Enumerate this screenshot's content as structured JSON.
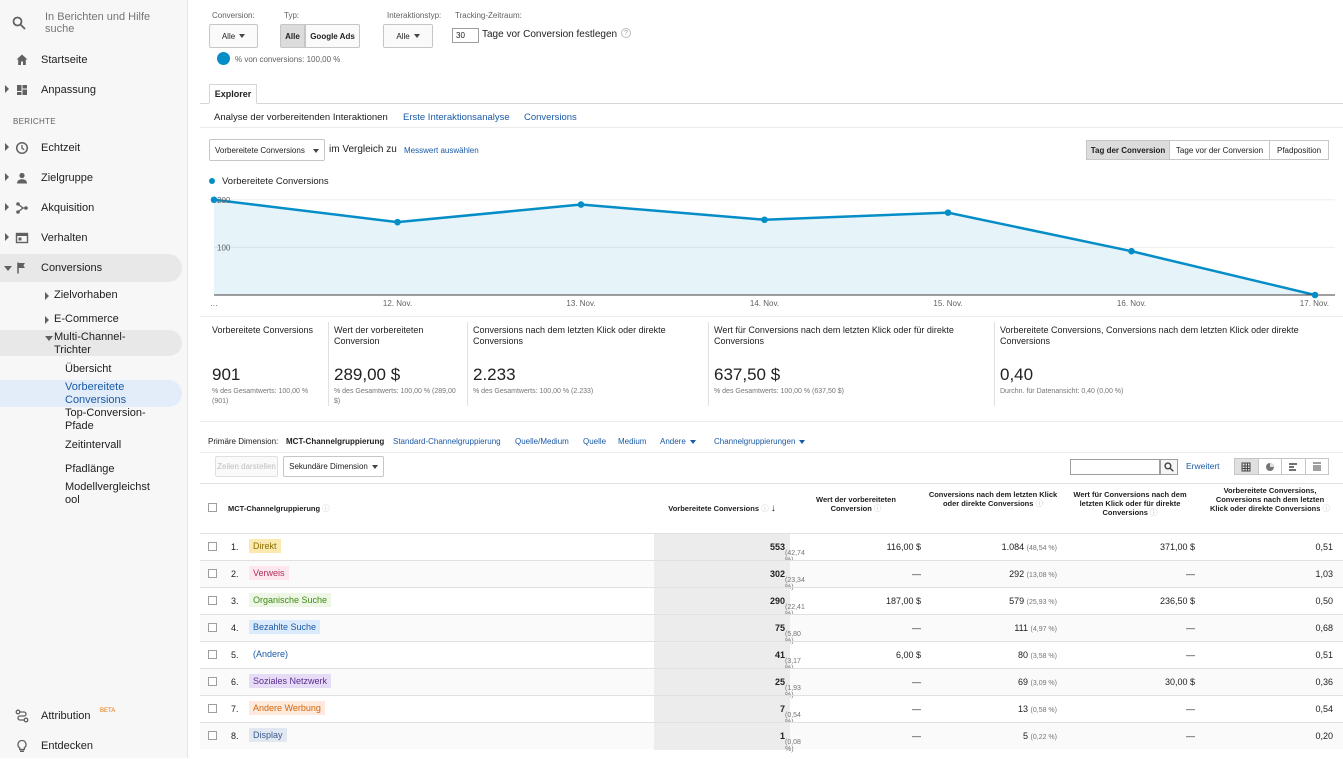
{
  "sidebar": {
    "search_placeholder": "In Berichten und Hilfe suche",
    "top_items": [
      {
        "label": "Startseite",
        "icon": "home-icon"
      },
      {
        "label": "Anpassung",
        "icon": "dashboard-icon"
      }
    ],
    "section": "BERICHTE",
    "report_items": [
      {
        "label": "Echtzeit",
        "icon": "clock-icon"
      },
      {
        "label": "Zielgruppe",
        "icon": "person-icon"
      },
      {
        "label": "Akquisition",
        "icon": "acquisition-icon"
      },
      {
        "label": "Verhalten",
        "icon": "behavior-icon"
      },
      {
        "label": "Conversions",
        "icon": "flag-icon"
      }
    ],
    "conversion_sub": [
      "Zielvorhaben",
      "E-Commerce",
      "Multi-Channel-Trichter"
    ],
    "mcf_sub": [
      "Übersicht",
      "Vorbereitete Conversions",
      "Top-Conversion-Pfade",
      "Zeitintervall",
      "Pfadlänge",
      "Modellvergleichst ool"
    ],
    "bottom": {
      "attribution": "Attribution",
      "beta": "BETA",
      "discover": "Entdecken"
    }
  },
  "filters": {
    "conversion_label": "Conversion:",
    "conversion_value": "Alle",
    "type_label": "Typ:",
    "type_all": "Alle",
    "type_ads": "Google Ads",
    "interaction_label": "Interaktionstyp:",
    "interaction_value": "Alle",
    "tracking_label": "Tracking-Zeitraum:",
    "tracking_days": "30",
    "tracking_suffix": "Tage vor Conversion festlegen",
    "segment_text": "% von conversions: 100,00 %"
  },
  "tabs": {
    "explorer": "Explorer",
    "subtabs": [
      "Analyse der vorbereitenden Interaktionen",
      "Erste Interaktionsanalyse",
      "Conversions"
    ]
  },
  "chart_controls": {
    "metric_select": "Vorbereitete Conversions",
    "compare_text": "im Vergleich zu",
    "compare_link": "Messwert auswählen",
    "view_buttons": [
      "Tag der Conversion",
      "Tage vor der Conversion",
      "Pfadposition"
    ]
  },
  "chart_data": {
    "type": "area",
    "series": [
      {
        "name": "Vorbereitete Conversions",
        "values": [
          200,
          153,
          190,
          158,
          173,
          92,
          0
        ]
      }
    ],
    "x": [
      "…",
      "12. Nov.",
      "13. Nov.",
      "14. Nov.",
      "15. Nov.",
      "16. Nov.",
      "17. Nov."
    ],
    "yticks": [
      "200",
      "100"
    ],
    "ylim": [
      0,
      210
    ],
    "color": "#058dc7"
  },
  "metrics": [
    {
      "title": "Vorbereitete Conversions",
      "value": "901",
      "sub": "% des Gesamtwerts: 100,00 % (901)"
    },
    {
      "title": "Wert der vorbereiteten Conversion",
      "value": "289,00 $",
      "sub": "% des Gesamtwerts: 100,00 % (289,00 $)"
    },
    {
      "title": "Conversions nach dem letzten Klick oder direkte Conversions",
      "value": "2.233",
      "sub": "% des Gesamtwerts: 100,00 % (2.233)"
    },
    {
      "title": "Wert für Conversions nach dem letzten Klick oder für direkte Conversions",
      "value": "637,50 $",
      "sub": "% des Gesamtwerts: 100,00 % (637,50 $)"
    },
    {
      "title": "Vorbereitete Conversions, Conversions nach dem letzten Klick oder direkte Conversions",
      "value": "0,40",
      "sub": "Durchn. für Datenansicht: 0,40 (0,00 %)"
    }
  ],
  "dimension": {
    "label": "Primäre Dimension:",
    "active": "MCT-Channelgruppierung",
    "links": [
      "Standard-Channelgruppierung",
      "Quelle/Medium",
      "Quelle",
      "Medium",
      "Andere"
    ],
    "channel_groups": "Channelgruppierungen"
  },
  "toolbar": {
    "show_rows": "Zeilen darstellen",
    "secondary": "Sekundäre Dimension",
    "advanced": "Erweitert"
  },
  "table": {
    "headers": [
      "MCT-Channelgruppierung",
      "Vorbereitete Conversions",
      "Wert der vorbereiteten Conversion",
      "Conversions nach dem letzten Klick oder direkte Conversions",
      "Wert für Conversions nach dem letzten Klick oder für direkte Conversions",
      "Vorbereitete Conversions, Conversions nach dem letzten Klick oder direkte Conversions"
    ],
    "rows": [
      {
        "n": "1.",
        "name": "Direkt",
        "bg": "#fbe9b0",
        "fg": "#8a6d00",
        "assisted": "553",
        "apct": "(42,74 %)",
        "value": "116,00 $",
        "last": "1.084",
        "lpct": "(48,54 %)",
        "lvalue": "371,00 $",
        "ratio": "0,51"
      },
      {
        "n": "2.",
        "name": "Verweis",
        "bg": "#fde7ee",
        "fg": "#b0305a",
        "assisted": "302",
        "apct": "(23,34 %)",
        "value": "—",
        "last": "292",
        "lpct": "(13,08 %)",
        "lvalue": "—",
        "ratio": "1,03"
      },
      {
        "n": "3.",
        "name": "Organische Suche",
        "bg": "#eef7e6",
        "fg": "#3f8a15",
        "assisted": "290",
        "apct": "(22,41 %)",
        "value": "187,00 $",
        "last": "579",
        "lpct": "(25,93 %)",
        "lvalue": "236,50 $",
        "ratio": "0,50"
      },
      {
        "n": "4.",
        "name": "Bezahlte Suche",
        "bg": "#dcebfb",
        "fg": "#1a5aa6",
        "assisted": "75",
        "apct": "(5,80 %)",
        "value": "—",
        "last": "111",
        "lpct": "(4,97 %)",
        "lvalue": "—",
        "ratio": "0,68"
      },
      {
        "n": "5.",
        "name": "(Andere)",
        "bg": "transparent",
        "fg": "#1a5aa6",
        "assisted": "41",
        "apct": "(3,17 %)",
        "value": "6,00 $",
        "last": "80",
        "lpct": "(3,58 %)",
        "lvalue": "—",
        "ratio": "0,51"
      },
      {
        "n": "6.",
        "name": "Soziales Netzwerk",
        "bg": "#e6dcf5",
        "fg": "#5b2e91",
        "assisted": "25",
        "apct": "(1,93 %)",
        "value": "—",
        "last": "69",
        "lpct": "(3,09 %)",
        "lvalue": "30,00 $",
        "ratio": "0,36"
      },
      {
        "n": "7.",
        "name": "Andere Werbung",
        "bg": "#fdeadc",
        "fg": "#d0650e",
        "assisted": "7",
        "apct": "(0,54 %)",
        "value": "—",
        "last": "13",
        "lpct": "(0,58 %)",
        "lvalue": "—",
        "ratio": "0,54"
      },
      {
        "n": "8.",
        "name": "Display",
        "bg": "#e2e8f2",
        "fg": "#3c5a8a",
        "assisted": "1",
        "apct": "(0,08 %)",
        "value": "—",
        "last": "5",
        "lpct": "(0,22 %)",
        "lvalue": "—",
        "ratio": "0,20"
      }
    ]
  }
}
